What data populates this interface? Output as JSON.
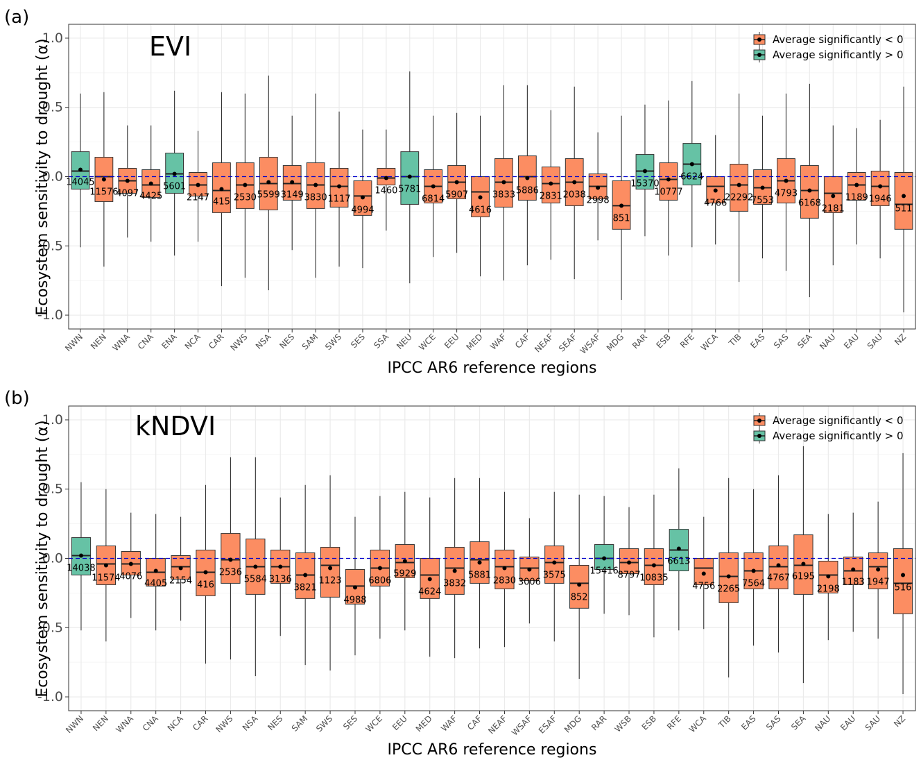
{
  "legend": {
    "neg_label": "Average significantly < 0",
    "pos_label": "Average significantly > 0"
  },
  "colors": {
    "negative": "#fc8d62",
    "positive": "#66c2a5",
    "zero_line": "#0000cc",
    "grid": "#ebebeb"
  },
  "chart_data": [
    {
      "type": "box",
      "panel_label": "(a)",
      "title": "EVI",
      "xlabel": "IPCC AR6 reference regions",
      "ylabel": "Ecosystem sensitivity to drought (α)",
      "ylim": [
        -1.1,
        1.1
      ],
      "yticks": [
        "1.0",
        "0.5",
        "0.0",
        "-0.5",
        "-1.0"
      ],
      "legend_position": "top-right",
      "regions": [
        {
          "name": "NWN",
          "sign": "pos",
          "lo": -0.51,
          "q1": -0.09,
          "med": 0.04,
          "q3": 0.18,
          "hi": 0.6,
          "mean": 0.05,
          "n": "14045"
        },
        {
          "name": "NEN",
          "sign": "neg",
          "lo": -0.65,
          "q1": -0.18,
          "med": 0.0,
          "q3": 0.14,
          "hi": 0.61,
          "mean": -0.02,
          "n": "11576"
        },
        {
          "name": "WNA",
          "sign": "neg",
          "lo": -0.44,
          "q1": -0.12,
          "med": -0.03,
          "q3": 0.06,
          "hi": 0.37,
          "mean": -0.03,
          "n": "4097"
        },
        {
          "name": "CNA",
          "sign": "neg",
          "lo": -0.47,
          "q1": -0.15,
          "med": -0.06,
          "q3": 0.05,
          "hi": 0.37,
          "mean": -0.05,
          "n": "4425"
        },
        {
          "name": "ENA",
          "sign": "pos",
          "lo": -0.57,
          "q1": -0.12,
          "med": 0.02,
          "q3": 0.17,
          "hi": 0.62,
          "mean": 0.02,
          "n": "5601"
        },
        {
          "name": "NCA",
          "sign": "neg",
          "lo": -0.47,
          "q1": -0.14,
          "med": -0.06,
          "q3": 0.03,
          "hi": 0.33,
          "mean": -0.06,
          "n": "2147"
        },
        {
          "name": "CAR",
          "sign": "neg",
          "lo": -0.79,
          "q1": -0.26,
          "med": -0.1,
          "q3": 0.1,
          "hi": 0.61,
          "mean": -0.09,
          "n": "415"
        },
        {
          "name": "NWS",
          "sign": "neg",
          "lo": -0.73,
          "q1": -0.23,
          "med": -0.06,
          "q3": 0.1,
          "hi": 0.6,
          "mean": -0.06,
          "n": "2530"
        },
        {
          "name": "NSA",
          "sign": "neg",
          "lo": -0.82,
          "q1": -0.24,
          "med": -0.05,
          "q3": 0.14,
          "hi": 0.73,
          "mean": -0.04,
          "n": "5599"
        },
        {
          "name": "NES",
          "sign": "neg",
          "lo": -0.53,
          "q1": -0.17,
          "med": -0.05,
          "q3": 0.08,
          "hi": 0.44,
          "mean": -0.04,
          "n": "3149"
        },
        {
          "name": "SAM",
          "sign": "neg",
          "lo": -0.73,
          "q1": -0.23,
          "med": -0.06,
          "q3": 0.1,
          "hi": 0.6,
          "mean": -0.06,
          "n": "3830"
        },
        {
          "name": "SWS",
          "sign": "neg",
          "lo": -0.65,
          "q1": -0.22,
          "med": -0.07,
          "q3": 0.06,
          "hi": 0.47,
          "mean": -0.07,
          "n": "1117"
        },
        {
          "name": "SES",
          "sign": "neg",
          "lo": -0.66,
          "q1": -0.28,
          "med": -0.14,
          "q3": -0.03,
          "hi": 0.34,
          "mean": -0.15,
          "n": "4994"
        },
        {
          "name": "SSA",
          "sign": "neg",
          "lo": -0.39,
          "q1": -0.06,
          "med": -0.01,
          "q3": 0.06,
          "hi": 0.34,
          "mean": -0.01,
          "n": "1460"
        },
        {
          "name": "NEU",
          "sign": "pos",
          "lo": -0.77,
          "q1": -0.2,
          "med": 0.0,
          "q3": 0.18,
          "hi": 0.76,
          "mean": 0.0,
          "n": "5781"
        },
        {
          "name": "WCE",
          "sign": "neg",
          "lo": -0.58,
          "q1": -0.19,
          "med": -0.07,
          "q3": 0.05,
          "hi": 0.44,
          "mean": -0.07,
          "n": "6814"
        },
        {
          "name": "EEU",
          "sign": "neg",
          "lo": -0.55,
          "q1": -0.16,
          "med": -0.04,
          "q3": 0.08,
          "hi": 0.46,
          "mean": -0.04,
          "n": "5907"
        },
        {
          "name": "MED",
          "sign": "neg",
          "lo": -0.72,
          "q1": -0.29,
          "med": -0.11,
          "q3": 0.0,
          "hi": 0.44,
          "mean": -0.15,
          "n": "4616"
        },
        {
          "name": "WAF",
          "sign": "neg",
          "lo": -0.75,
          "q1": -0.22,
          "med": -0.04,
          "q3": 0.13,
          "hi": 0.66,
          "mean": -0.04,
          "n": "3833"
        },
        {
          "name": "CAF",
          "sign": "neg",
          "lo": -0.64,
          "q1": -0.17,
          "med": 0.0,
          "q3": 0.15,
          "hi": 0.66,
          "mean": -0.01,
          "n": "5886"
        },
        {
          "name": "NEAF",
          "sign": "neg",
          "lo": -0.6,
          "q1": -0.19,
          "med": -0.05,
          "q3": 0.07,
          "hi": 0.48,
          "mean": -0.05,
          "n": "2831"
        },
        {
          "name": "SEAF",
          "sign": "neg",
          "lo": -0.74,
          "q1": -0.21,
          "med": -0.04,
          "q3": 0.13,
          "hi": 0.65,
          "mean": -0.04,
          "n": "2038"
        },
        {
          "name": "WSAF",
          "sign": "neg",
          "lo": -0.46,
          "q1": -0.16,
          "med": -0.07,
          "q3": 0.02,
          "hi": 0.32,
          "mean": -0.08,
          "n": "2998"
        },
        {
          "name": "MDG",
          "sign": "neg",
          "lo": -0.89,
          "q1": -0.38,
          "med": -0.21,
          "q3": -0.03,
          "hi": 0.44,
          "mean": -0.21,
          "n": "851"
        },
        {
          "name": "RAR",
          "sign": "pos",
          "lo": -0.43,
          "q1": -0.09,
          "med": 0.04,
          "q3": 0.16,
          "hi": 0.52,
          "mean": 0.04,
          "n": "15370"
        },
        {
          "name": "ESB",
          "sign": "neg",
          "lo": -0.57,
          "q1": -0.17,
          "med": -0.02,
          "q3": 0.1,
          "hi": 0.55,
          "mean": -0.02,
          "n": "10777"
        },
        {
          "name": "RFE",
          "sign": "pos",
          "lo": -0.51,
          "q1": -0.06,
          "med": 0.09,
          "q3": 0.24,
          "hi": 0.69,
          "mean": 0.09,
          "n": "6624"
        },
        {
          "name": "WCA",
          "sign": "neg",
          "lo": -0.49,
          "q1": -0.19,
          "med": -0.07,
          "q3": 0.0,
          "hi": 0.3,
          "mean": -0.1,
          "n": "4766"
        },
        {
          "name": "TIB",
          "sign": "neg",
          "lo": -0.76,
          "q1": -0.25,
          "med": -0.06,
          "q3": 0.09,
          "hi": 0.6,
          "mean": -0.06,
          "n": "22292"
        },
        {
          "name": "EAS",
          "sign": "neg",
          "lo": -0.59,
          "q1": -0.2,
          "med": -0.08,
          "q3": 0.05,
          "hi": 0.44,
          "mean": -0.08,
          "n": "7553"
        },
        {
          "name": "SAS",
          "sign": "neg",
          "lo": -0.68,
          "q1": -0.19,
          "med": -0.03,
          "q3": 0.13,
          "hi": 0.6,
          "mean": -0.03,
          "n": "4793"
        },
        {
          "name": "SEA",
          "sign": "neg",
          "lo": -0.87,
          "q1": -0.3,
          "med": -0.1,
          "q3": 0.08,
          "hi": 0.67,
          "mean": -0.1,
          "n": "6168"
        },
        {
          "name": "NAU",
          "sign": "neg",
          "lo": -0.64,
          "q1": -0.26,
          "med": -0.12,
          "q3": 0.0,
          "hi": 0.37,
          "mean": -0.14,
          "n": "2181"
        },
        {
          "name": "EAU",
          "sign": "neg",
          "lo": -0.49,
          "q1": -0.17,
          "med": -0.06,
          "q3": 0.03,
          "hi": 0.35,
          "mean": -0.06,
          "n": "1189"
        },
        {
          "name": "SAU",
          "sign": "neg",
          "lo": -0.59,
          "q1": -0.21,
          "med": -0.07,
          "q3": 0.04,
          "hi": 0.41,
          "mean": -0.07,
          "n": "1946"
        },
        {
          "name": "NZ",
          "sign": "neg",
          "lo": -0.98,
          "q1": -0.38,
          "med": -0.2,
          "q3": 0.03,
          "hi": 0.65,
          "mean": -0.14,
          "n": "511"
        }
      ]
    },
    {
      "type": "box",
      "panel_label": "(b)",
      "title": "kNDVI",
      "xlabel": "IPCC AR6 reference regions",
      "ylabel": "Ecosystem sensitivity to drought (α)",
      "ylim": [
        -1.1,
        1.1
      ],
      "yticks": [
        "1.0",
        "0.5",
        "0.0",
        "-0.5",
        "-1.0"
      ],
      "legend_position": "top-right",
      "regions": [
        {
          "name": "NWN",
          "sign": "pos",
          "lo": -0.52,
          "q1": -0.12,
          "med": 0.02,
          "q3": 0.15,
          "hi": 0.55,
          "mean": 0.02,
          "n": "14038"
        },
        {
          "name": "NEN",
          "sign": "neg",
          "lo": -0.6,
          "q1": -0.19,
          "med": -0.04,
          "q3": 0.09,
          "hi": 0.5,
          "mean": -0.05,
          "n": "11574"
        },
        {
          "name": "WNA",
          "sign": "neg",
          "lo": -0.43,
          "q1": -0.12,
          "med": -0.04,
          "q3": 0.05,
          "hi": 0.33,
          "mean": -0.04,
          "n": "4076"
        },
        {
          "name": "CNA",
          "sign": "neg",
          "lo": -0.52,
          "q1": -0.2,
          "med": -0.1,
          "q3": 0.0,
          "hi": 0.32,
          "mean": -0.09,
          "n": "4405"
        },
        {
          "name": "NCA",
          "sign": "neg",
          "lo": -0.45,
          "q1": -0.15,
          "med": -0.06,
          "q3": 0.02,
          "hi": 0.3,
          "mean": -0.07,
          "n": "2154"
        },
        {
          "name": "CAR",
          "sign": "neg",
          "lo": -0.76,
          "q1": -0.27,
          "med": -0.1,
          "q3": 0.06,
          "hi": 0.53,
          "mean": -0.1,
          "n": "416"
        },
        {
          "name": "NWS",
          "sign": "neg",
          "lo": -0.73,
          "q1": -0.18,
          "med": -0.01,
          "q3": 0.18,
          "hi": 0.73,
          "mean": -0.01,
          "n": "2536"
        },
        {
          "name": "NSA",
          "sign": "neg",
          "lo": -0.85,
          "q1": -0.26,
          "med": -0.06,
          "q3": 0.14,
          "hi": 0.73,
          "mean": -0.06,
          "n": "5584"
        },
        {
          "name": "NES",
          "sign": "neg",
          "lo": -0.56,
          "q1": -0.18,
          "med": -0.06,
          "q3": 0.06,
          "hi": 0.44,
          "mean": -0.06,
          "n": "3136"
        },
        {
          "name": "SAM",
          "sign": "neg",
          "lo": -0.77,
          "q1": -0.29,
          "med": -0.12,
          "q3": 0.04,
          "hi": 0.53,
          "mean": -0.12,
          "n": "3821"
        },
        {
          "name": "SWS",
          "sign": "neg",
          "lo": -0.81,
          "q1": -0.28,
          "med": -0.05,
          "q3": 0.08,
          "hi": 0.6,
          "mean": -0.07,
          "n": "1123"
        },
        {
          "name": "SES",
          "sign": "neg",
          "lo": -0.7,
          "q1": -0.33,
          "med": -0.2,
          "q3": -0.08,
          "hi": 0.3,
          "mean": -0.21,
          "n": "4988"
        },
        {
          "name": "WCE",
          "sign": "neg",
          "lo": -0.58,
          "q1": -0.2,
          "med": -0.07,
          "q3": 0.06,
          "hi": 0.45,
          "mean": -0.07,
          "n": "6806"
        },
        {
          "name": "EEU",
          "sign": "neg",
          "lo": -0.52,
          "q1": -0.14,
          "med": -0.03,
          "q3": 0.1,
          "hi": 0.48,
          "mean": -0.02,
          "n": "5929"
        },
        {
          "name": "MED",
          "sign": "neg",
          "lo": -0.71,
          "q1": -0.29,
          "med": -0.12,
          "q3": 0.0,
          "hi": 0.44,
          "mean": -0.15,
          "n": "4624"
        },
        {
          "name": "WAF",
          "sign": "neg",
          "lo": -0.72,
          "q1": -0.26,
          "med": -0.07,
          "q3": 0.08,
          "hi": 0.58,
          "mean": -0.09,
          "n": "3832"
        },
        {
          "name": "CAF",
          "sign": "neg",
          "lo": -0.65,
          "q1": -0.18,
          "med": -0.01,
          "q3": 0.12,
          "hi": 0.58,
          "mean": -0.03,
          "n": "5881"
        },
        {
          "name": "NEAF",
          "sign": "neg",
          "lo": -0.64,
          "q1": -0.22,
          "med": -0.06,
          "q3": 0.06,
          "hi": 0.48,
          "mean": -0.07,
          "n": "2830"
        },
        {
          "name": "WSAF",
          "sign": "neg",
          "lo": -0.47,
          "q1": -0.16,
          "med": -0.07,
          "q3": 0.01,
          "hi": 0.29,
          "mean": -0.08,
          "n": "3006"
        },
        {
          "name": "ESAF",
          "sign": "neg",
          "lo": -0.6,
          "q1": -0.18,
          "med": -0.03,
          "q3": 0.09,
          "hi": 0.48,
          "mean": -0.03,
          "n": "3575"
        },
        {
          "name": "MDG",
          "sign": "neg",
          "lo": -0.87,
          "q1": -0.36,
          "med": -0.18,
          "q3": -0.05,
          "hi": 0.46,
          "mean": -0.19,
          "n": "852"
        },
        {
          "name": "RAR",
          "sign": "pos",
          "lo": -0.4,
          "q1": -0.08,
          "med": 0.0,
          "q3": 0.1,
          "hi": 0.45,
          "mean": 0.0,
          "n": "15416"
        },
        {
          "name": "WSB",
          "sign": "neg",
          "lo": -0.41,
          "q1": -0.11,
          "med": -0.03,
          "q3": 0.07,
          "hi": 0.37,
          "mean": -0.03,
          "n": "8797"
        },
        {
          "name": "ESB",
          "sign": "neg",
          "lo": -0.57,
          "q1": -0.19,
          "med": -0.05,
          "q3": 0.07,
          "hi": 0.46,
          "mean": -0.05,
          "n": "10835"
        },
        {
          "name": "RFE",
          "sign": "pos",
          "lo": -0.52,
          "q1": -0.09,
          "med": 0.06,
          "q3": 0.21,
          "hi": 0.65,
          "mean": 0.07,
          "n": "6613"
        },
        {
          "name": "WCA",
          "sign": "neg",
          "lo": -0.51,
          "q1": -0.19,
          "med": -0.07,
          "q3": 0.0,
          "hi": 0.3,
          "mean": -0.11,
          "n": "4756"
        },
        {
          "name": "TIB",
          "sign": "neg",
          "lo": -0.86,
          "q1": -0.32,
          "med": -0.13,
          "q3": 0.04,
          "hi": 0.58,
          "mean": -0.13,
          "n": "2265"
        },
        {
          "name": "EAS",
          "sign": "neg",
          "lo": -0.63,
          "q1": -0.22,
          "med": -0.09,
          "q3": 0.04,
          "hi": 0.5,
          "mean": -0.09,
          "n": "7564"
        },
        {
          "name": "SAS",
          "sign": "neg",
          "lo": -0.68,
          "q1": -0.22,
          "med": -0.06,
          "q3": 0.09,
          "hi": 0.6,
          "mean": -0.05,
          "n": "4767"
        },
        {
          "name": "SEA",
          "sign": "neg",
          "lo": -0.9,
          "q1": -0.26,
          "med": -0.05,
          "q3": 0.17,
          "hi": 0.81,
          "mean": -0.04,
          "n": "6195"
        },
        {
          "name": "NAU",
          "sign": "neg",
          "lo": -0.59,
          "q1": -0.25,
          "med": -0.12,
          "q3": -0.02,
          "hi": 0.32,
          "mean": -0.13,
          "n": "2198"
        },
        {
          "name": "EAU",
          "sign": "neg",
          "lo": -0.53,
          "q1": -0.19,
          "med": -0.09,
          "q3": 0.01,
          "hi": 0.33,
          "mean": -0.08,
          "n": "1183"
        },
        {
          "name": "SAU",
          "sign": "neg",
          "lo": -0.58,
          "q1": -0.22,
          "med": -0.06,
          "q3": 0.04,
          "hi": 0.41,
          "mean": -0.08,
          "n": "1947"
        },
        {
          "name": "NZ",
          "sign": "neg",
          "lo": -0.98,
          "q1": -0.4,
          "med": -0.18,
          "q3": 0.07,
          "hi": 0.76,
          "mean": -0.12,
          "n": "516"
        }
      ]
    }
  ]
}
